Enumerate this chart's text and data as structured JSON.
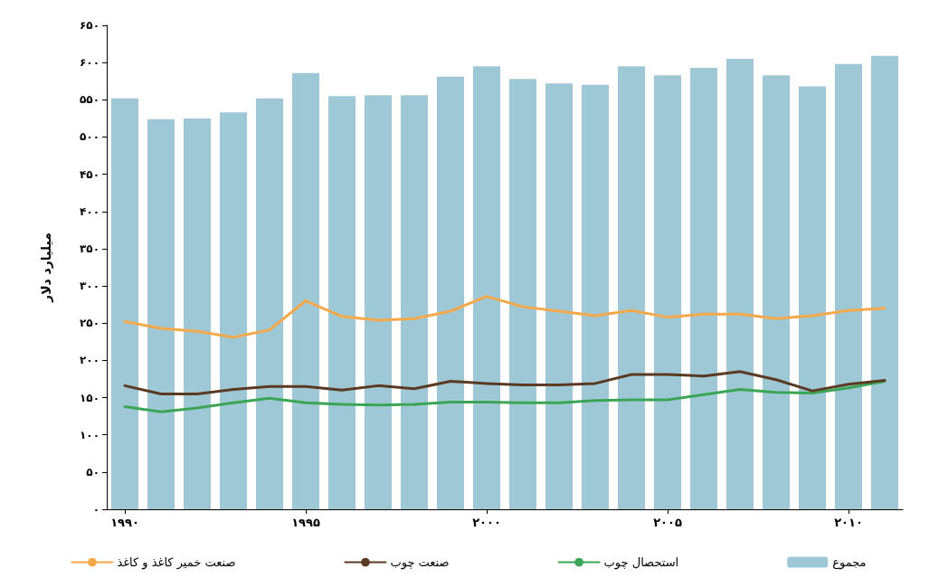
{
  "chart_data": {
    "type": "bar",
    "ylabel": "میلیارد دلار",
    "categories": [
      "۱۹۹۰",
      null,
      null,
      null,
      null,
      "۱۹۹۵",
      null,
      null,
      null,
      null,
      "۲۰۰۰",
      null,
      null,
      null,
      null,
      "۲۰۰۵",
      null,
      null,
      null,
      null,
      "۲۰۱۰",
      null
    ],
    "series": [
      {
        "name": "مجموع",
        "color": "#9fc8d6",
        "values": [
          552,
          524,
          525,
          533,
          552,
          586,
          555,
          556,
          556,
          581,
          595,
          578,
          572,
          570,
          595,
          583,
          593,
          605,
          583,
          568,
          598,
          609
        ]
      },
      {
        "name": "استحصال چوب",
        "type": "line",
        "color": "#3aa655",
        "values": [
          138,
          131,
          136,
          143,
          149,
          143,
          141,
          140,
          141,
          144,
          144,
          143,
          143,
          146,
          147,
          147,
          154,
          161,
          157,
          156,
          163,
          172
        ]
      },
      {
        "name": "صنعت چوب",
        "type": "line",
        "color": "#5a3a22",
        "values": [
          166,
          155,
          155,
          161,
          165,
          165,
          160,
          166,
          162,
          172,
          169,
          167,
          167,
          169,
          181,
          181,
          179,
          185,
          174,
          159,
          168,
          173
        ]
      },
      {
        "name": "صنعت خمیر کاغذ و کاغذ",
        "type": "line",
        "color": "#f5a84a",
        "values": [
          252,
          243,
          239,
          231,
          241,
          280,
          259,
          254,
          256,
          266,
          286,
          272,
          266,
          260,
          267,
          258,
          262,
          262,
          256,
          260,
          267,
          270
        ]
      }
    ],
    "ylim": [
      0,
      650
    ],
    "yticks": [
      {
        "value": 0,
        "label": "۰"
      },
      {
        "value": 50,
        "label": "۵۰"
      },
      {
        "value": 100,
        "label": "۱۰۰"
      },
      {
        "value": 150,
        "label": "۱۵۰"
      },
      {
        "value": 200,
        "label": "۲۰۰"
      },
      {
        "value": 250,
        "label": "۲۵۰"
      },
      {
        "value": 300,
        "label": "۳۰۰"
      },
      {
        "value": 350,
        "label": "۳۵۰"
      },
      {
        "value": 400,
        "label": "۴۰۰"
      },
      {
        "value": 450,
        "label": "۴۵۰"
      },
      {
        "value": 500,
        "label": "۵۰۰"
      },
      {
        "value": 550,
        "label": "۵۵۰"
      },
      {
        "value": 600,
        "label": "۶۰۰"
      },
      {
        "value": 650,
        "label": "۶۵۰"
      }
    ],
    "grid": false,
    "legend": "bottom",
    "marker": "none",
    "line_style": "solid"
  }
}
